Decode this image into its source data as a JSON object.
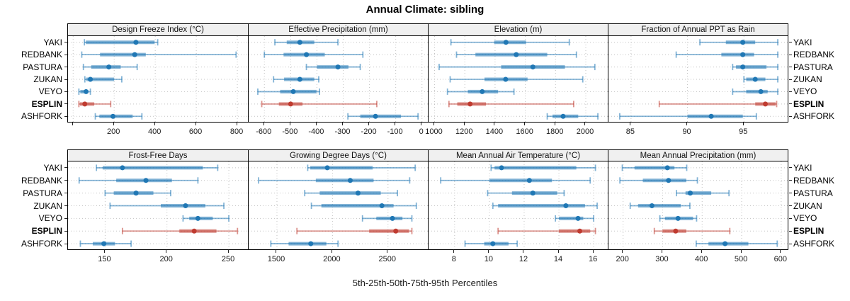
{
  "chart_data": {
    "type": "dotplot",
    "title": "Annual Climate: sibling",
    "xlabel": "5th-25th-50th-75th-95th Percentiles",
    "percentiles": [
      5,
      25,
      50,
      75,
      95
    ],
    "categories": [
      "YAKI",
      "REDBANK",
      "PASTURA",
      "ZUKAN",
      "VEYO",
      "ESPLIN",
      "ASHFORK"
    ],
    "highlight_category": "ESPLIN",
    "legend_position": "none",
    "grid": "dotted",
    "layout": "2 rows x 4 columns trellis, site labels on left and right, axis labels below each row",
    "colors": {
      "series": "#1f77b4",
      "highlight": "#bf3b30",
      "gridline": "#c3c3c3",
      "strip_bg": "#f0f0f0",
      "border": "#000000",
      "tick": "#222222",
      "text": "#1a1a1a"
    },
    "panels": [
      {
        "title": "Design Freeze Index (°C)",
        "xlim": [
          -25,
          855
        ],
        "ticks": [
          200,
          400,
          600,
          800
        ],
        "unlabeled_ticks": [
          0
        ],
        "values": [
          [
            55,
            62,
            306,
            397,
            412
          ],
          [
            42,
            131,
            300,
            354,
            794
          ],
          [
            50,
            88,
            174,
            232,
            312
          ],
          [
            57,
            64,
            84,
            200,
            237
          ],
          [
            28,
            35,
            63,
            74,
            84
          ],
          [
            28,
            33,
            57,
            103,
            183
          ],
          [
            108,
            128,
            194,
            290,
            335
          ]
        ]
      },
      {
        "title": "Effective Precipitation (mm)",
        "xlim": [
          -660,
          25
        ],
        "ticks": [
          -600,
          -500,
          -400,
          -300,
          -200,
          -100,
          0
        ],
        "unlabeled_ticks": [],
        "values": [
          [
            -560,
            -515,
            -465,
            -410,
            -320
          ],
          [
            -600,
            -527,
            -440,
            -370,
            -225
          ],
          [
            -440,
            -400,
            -320,
            -280,
            -235
          ],
          [
            -565,
            -525,
            -465,
            -410,
            -393
          ],
          [
            -625,
            -540,
            -490,
            -402,
            -390
          ],
          [
            -610,
            -545,
            -500,
            -455,
            -172
          ],
          [
            -282,
            -235,
            -177,
            -80,
            -15
          ]
        ]
      },
      {
        "title": "Elevation (m)",
        "xlim": [
          960,
          2150
        ],
        "ticks": [
          1000,
          1200,
          1400,
          1600,
          1800,
          2000
        ],
        "unlabeled_ticks": [],
        "values": [
          [
            1108,
            1394,
            1472,
            1605,
            1891
          ],
          [
            1145,
            1270,
            1540,
            1745,
            1938
          ],
          [
            1030,
            1440,
            1650,
            1862,
            2060
          ],
          [
            1103,
            1330,
            1470,
            1615,
            1980
          ],
          [
            1085,
            1220,
            1315,
            1420,
            1525
          ],
          [
            1095,
            1150,
            1235,
            1340,
            1920
          ],
          [
            1745,
            1780,
            1850,
            1950,
            2080
          ]
        ]
      },
      {
        "title": "Fraction of Annual PPT as Rain",
        "xlim": [
          83,
          99
        ],
        "ticks": [
          85,
          90,
          95
        ],
        "unlabeled_ticks": [],
        "values": [
          [
            91.1,
            93.4,
            94.9,
            96.0,
            98.0
          ],
          [
            89.0,
            93.0,
            94.9,
            95.9,
            98.0
          ],
          [
            94.0,
            94.3,
            94.9,
            97.0,
            98.0
          ],
          [
            95.0,
            95.2,
            96.0,
            96.9,
            98.0
          ],
          [
            94.0,
            95.2,
            96.5,
            97.1,
            98.0
          ],
          [
            87.5,
            96.0,
            96.9,
            97.8,
            97.9
          ],
          [
            84.0,
            90.0,
            92.1,
            94.9,
            96.1
          ]
        ]
      },
      {
        "title": "Frost-Free Days",
        "xlim": [
          120,
          266
        ],
        "ticks": [
          150,
          200,
          250
        ],
        "unlabeled_ticks": [],
        "values": [
          [
            143,
            148,
            164,
            229,
            241
          ],
          [
            129,
            159,
            183,
            204,
            225
          ],
          [
            150,
            157,
            175,
            189,
            203
          ],
          [
            154,
            195,
            215,
            231,
            246
          ],
          [
            213,
            218,
            225,
            237,
            250
          ],
          [
            164,
            210,
            222,
            240,
            257
          ],
          [
            130,
            140,
            149,
            158,
            171
          ]
        ]
      },
      {
        "title": "Growing Degree Days (°C)",
        "xlim": [
          1245,
          2865
        ],
        "ticks": [
          1500,
          2000,
          2500
        ],
        "unlabeled_ticks": [],
        "values": [
          [
            1777,
            1800,
            1953,
            2362,
            2745
          ],
          [
            1335,
            1850,
            2160,
            2370,
            2695
          ],
          [
            1750,
            1885,
            2230,
            2435,
            2585
          ],
          [
            1810,
            1900,
            2445,
            2550,
            2755
          ],
          [
            2270,
            2395,
            2540,
            2630,
            2715
          ],
          [
            1680,
            2330,
            2570,
            2690,
            2715
          ],
          [
            1445,
            1605,
            1805,
            1945,
            2050
          ]
        ]
      },
      {
        "title": "Mean Annual Air Temperature (°C)",
        "xlim": [
          6.5,
          16.85
        ],
        "ticks": [
          8,
          10,
          12,
          14,
          16
        ],
        "unlabeled_ticks": [],
        "values": [
          [
            10.1,
            10.3,
            10.7,
            15.0,
            16.1
          ],
          [
            7.2,
            10.0,
            12.3,
            13.6,
            15.8
          ],
          [
            9.9,
            11.3,
            12.5,
            13.9,
            14.3
          ],
          [
            10.2,
            10.5,
            14.4,
            15.5,
            16.2
          ],
          [
            13.8,
            14.0,
            15.1,
            15.4,
            16.0
          ],
          [
            10.5,
            14.0,
            15.2,
            15.8,
            16.1
          ],
          [
            8.6,
            9.7,
            10.2,
            11.1,
            11.6
          ]
        ]
      },
      {
        "title": "Mean Annual Precipitation (mm)",
        "xlim": [
          163,
          620
        ],
        "ticks": [
          200,
          300,
          400,
          500,
          600
        ],
        "unlabeled_ticks": [],
        "values": [
          [
            198,
            229,
            312,
            330,
            361
          ],
          [
            192,
            250,
            315,
            360,
            388
          ],
          [
            335,
            358,
            370,
            423,
            468
          ],
          [
            218,
            238,
            273,
            346,
            369
          ],
          [
            293,
            306,
            339,
            377,
            386
          ],
          [
            279,
            300,
            333,
            360,
            470
          ],
          [
            385,
            416,
            458,
            517,
            590
          ]
        ]
      }
    ]
  }
}
